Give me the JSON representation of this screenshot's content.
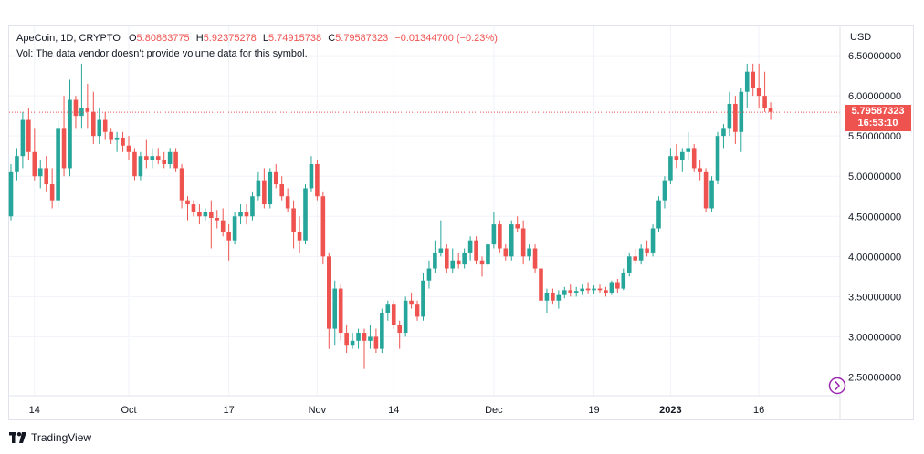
{
  "legend": {
    "symbol": "ApeCoin, 1D, CRYPTO",
    "open_label": "O",
    "open": "5.80883775",
    "high_label": "H",
    "high": "5.92375278",
    "low_label": "L",
    "low": "5.74915738",
    "close_label": "C",
    "close": "5.79587323",
    "change": "−0.01344700 (−0.23%)",
    "volume_note": "Vol: The data vendor doesn't provide volume data for this symbol."
  },
  "price_axis": {
    "currency": "USD",
    "tick_labels": [
      "6.50000000",
      "6.00000000",
      "5.50000000",
      "5.00000000",
      "4.50000000",
      "4.00000000",
      "3.50000000",
      "3.00000000",
      "2.50000000"
    ]
  },
  "current_price": {
    "value": "5.79587323",
    "countdown": "16:53:10"
  },
  "time_axis": {
    "tick_labels": [
      "14",
      "Oct",
      "17",
      "Nov",
      "14",
      "Dec",
      "19",
      "2023",
      "16"
    ]
  },
  "footer": {
    "brand": "TradingView"
  },
  "colors": {
    "up": "#26a69a",
    "down": "#ef5350",
    "grid": "#f0f3fa",
    "text": "#131722"
  },
  "icons": {
    "go_to_latest": "go-to-latest-icon",
    "logo": "tradingview-logo-icon"
  },
  "chart_data": {
    "type": "candlestick",
    "title": "ApeCoin, 1D, CRYPTO",
    "ylim": [
      2.25,
      6.75
    ],
    "y_ticks": [
      6.5,
      6.0,
      5.5,
      5.0,
      4.5,
      4.0,
      3.5,
      3.0,
      2.5
    ],
    "x_ticks": [
      {
        "label": "14",
        "index": 4
      },
      {
        "label": "Oct",
        "index": 20
      },
      {
        "label": "17",
        "index": 37
      },
      {
        "label": "Nov",
        "index": 52
      },
      {
        "label": "14",
        "index": 65
      },
      {
        "label": "Dec",
        "index": 82
      },
      {
        "label": "19",
        "index": 99
      },
      {
        "label": "2023",
        "index": 112
      },
      {
        "label": "16",
        "index": 127
      }
    ],
    "last_close": 5.79587323,
    "candles": [
      [
        4.5,
        5.15,
        4.45,
        5.05
      ],
      [
        5.05,
        5.35,
        4.95,
        5.25
      ],
      [
        5.25,
        5.8,
        5.1,
        5.7
      ],
      [
        5.7,
        5.85,
        5.2,
        5.3
      ],
      [
        5.3,
        5.6,
        4.95,
        5.0
      ],
      [
        5.0,
        5.2,
        4.85,
        5.1
      ],
      [
        5.1,
        5.25,
        4.8,
        4.9
      ],
      [
        4.9,
        5.1,
        4.6,
        4.7
      ],
      [
        4.7,
        5.7,
        4.6,
        5.6
      ],
      [
        5.6,
        6.0,
        5.0,
        5.1
      ],
      [
        5.1,
        6.2,
        5.0,
        5.95
      ],
      [
        5.95,
        6.0,
        5.6,
        5.75
      ],
      [
        5.75,
        6.4,
        5.6,
        5.85
      ],
      [
        5.85,
        6.15,
        5.6,
        5.8
      ],
      [
        5.8,
        6.05,
        5.4,
        5.5
      ],
      [
        5.5,
        5.85,
        5.4,
        5.7
      ],
      [
        5.7,
        5.8,
        5.45,
        5.55
      ],
      [
        5.55,
        5.6,
        5.4,
        5.45
      ],
      [
        5.45,
        5.55,
        5.3,
        5.48
      ],
      [
        5.48,
        5.55,
        5.3,
        5.38
      ],
      [
        5.38,
        5.5,
        5.2,
        5.3
      ],
      [
        5.3,
        5.35,
        4.95,
        5.0
      ],
      [
        5.0,
        5.3,
        4.95,
        5.25
      ],
      [
        5.25,
        5.45,
        5.1,
        5.2
      ],
      [
        5.2,
        5.35,
        5.1,
        5.25
      ],
      [
        5.25,
        5.35,
        5.15,
        5.2
      ],
      [
        5.2,
        5.3,
        5.1,
        5.15
      ],
      [
        5.15,
        5.35,
        5.1,
        5.3
      ],
      [
        5.3,
        5.35,
        5.05,
        5.1
      ],
      [
        5.1,
        5.15,
        4.6,
        4.7
      ],
      [
        4.7,
        4.75,
        4.45,
        4.65
      ],
      [
        4.65,
        4.7,
        4.5,
        4.55
      ],
      [
        4.55,
        4.65,
        4.4,
        4.5
      ],
      [
        4.5,
        4.6,
        4.45,
        4.55
      ],
      [
        4.55,
        4.7,
        4.1,
        4.48
      ],
      [
        4.48,
        4.58,
        4.35,
        4.45
      ],
      [
        4.45,
        4.6,
        4.25,
        4.3
      ],
      [
        4.3,
        4.4,
        3.95,
        4.2
      ],
      [
        4.2,
        4.55,
        4.15,
        4.5
      ],
      [
        4.5,
        4.65,
        4.4,
        4.55
      ],
      [
        4.55,
        4.65,
        4.4,
        4.5
      ],
      [
        4.5,
        4.8,
        4.45,
        4.75
      ],
      [
        4.75,
        5.05,
        4.7,
        4.95
      ],
      [
        4.95,
        5.1,
        4.6,
        4.65
      ],
      [
        4.65,
        5.1,
        4.6,
        5.05
      ],
      [
        5.05,
        5.15,
        4.85,
        4.9
      ],
      [
        4.9,
        5.0,
        4.7,
        4.75
      ],
      [
        4.75,
        4.85,
        4.55,
        4.6
      ],
      [
        4.6,
        4.7,
        4.1,
        4.3
      ],
      [
        4.3,
        4.5,
        4.05,
        4.2
      ],
      [
        4.2,
        4.9,
        4.15,
        4.85
      ],
      [
        4.85,
        5.25,
        4.8,
        5.15
      ],
      [
        5.15,
        5.2,
        4.7,
        4.75
      ],
      [
        4.75,
        4.8,
        3.9,
        4.0
      ],
      [
        4.0,
        4.05,
        2.85,
        3.1
      ],
      [
        3.1,
        3.7,
        2.9,
        3.6
      ],
      [
        3.6,
        3.65,
        2.95,
        3.05
      ],
      [
        3.05,
        3.15,
        2.8,
        2.9
      ],
      [
        2.9,
        3.05,
        2.85,
        2.95
      ],
      [
        2.95,
        3.1,
        2.85,
        3.05
      ],
      [
        3.05,
        3.1,
        2.6,
        2.95
      ],
      [
        2.95,
        3.15,
        2.85,
        3.0
      ],
      [
        3.0,
        3.1,
        2.8,
        2.85
      ],
      [
        2.85,
        3.35,
        2.8,
        3.3
      ],
      [
        3.3,
        3.45,
        3.2,
        3.4
      ],
      [
        3.4,
        3.45,
        3.1,
        3.15
      ],
      [
        3.15,
        3.2,
        2.85,
        3.05
      ],
      [
        3.05,
        3.5,
        3.0,
        3.45
      ],
      [
        3.45,
        3.55,
        3.35,
        3.4
      ],
      [
        3.4,
        3.45,
        3.2,
        3.25
      ],
      [
        3.25,
        3.8,
        3.2,
        3.7
      ],
      [
        3.7,
        3.95,
        3.6,
        3.85
      ],
      [
        3.85,
        4.2,
        3.8,
        4.05
      ],
      [
        4.05,
        4.45,
        4.0,
        4.1
      ],
      [
        4.1,
        4.15,
        3.8,
        3.85
      ],
      [
        3.85,
        4.1,
        3.8,
        3.95
      ],
      [
        3.95,
        4.05,
        3.85,
        3.9
      ],
      [
        3.9,
        4.1,
        3.85,
        4.05
      ],
      [
        4.05,
        4.25,
        3.95,
        4.2
      ],
      [
        4.2,
        4.25,
        3.9,
        3.95
      ],
      [
        3.95,
        4.0,
        3.75,
        3.9
      ],
      [
        3.9,
        4.2,
        3.85,
        4.15
      ],
      [
        4.15,
        4.55,
        4.1,
        4.4
      ],
      [
        4.4,
        4.45,
        4.05,
        4.1
      ],
      [
        4.1,
        4.15,
        3.95,
        4.0
      ],
      [
        4.0,
        4.45,
        3.95,
        4.4
      ],
      [
        4.4,
        4.5,
        4.3,
        4.35
      ],
      [
        4.35,
        4.45,
        3.9,
        4.0
      ],
      [
        4.0,
        4.15,
        3.95,
        4.1
      ],
      [
        4.1,
        4.15,
        3.8,
        3.85
      ],
      [
        3.85,
        3.9,
        3.3,
        3.45
      ],
      [
        3.45,
        3.6,
        3.3,
        3.55
      ],
      [
        3.55,
        3.6,
        3.4,
        3.45
      ],
      [
        3.45,
        3.58,
        3.35,
        3.52
      ],
      [
        3.52,
        3.62,
        3.48,
        3.58
      ],
      [
        3.58,
        3.65,
        3.5,
        3.55
      ],
      [
        3.55,
        3.62,
        3.5,
        3.57
      ],
      [
        3.57,
        3.65,
        3.52,
        3.6
      ],
      [
        3.6,
        3.68,
        3.54,
        3.58
      ],
      [
        3.58,
        3.64,
        3.54,
        3.6
      ],
      [
        3.6,
        3.65,
        3.55,
        3.58
      ],
      [
        3.58,
        3.62,
        3.5,
        3.55
      ],
      [
        3.55,
        3.7,
        3.52,
        3.68
      ],
      [
        3.68,
        3.72,
        3.55,
        3.6
      ],
      [
        3.6,
        3.85,
        3.58,
        3.8
      ],
      [
        3.8,
        4.05,
        3.75,
        4.0
      ],
      [
        4.0,
        4.1,
        3.9,
        3.95
      ],
      [
        3.95,
        4.15,
        3.9,
        4.1
      ],
      [
        4.1,
        4.2,
        4.0,
        4.05
      ],
      [
        4.05,
        4.4,
        4.0,
        4.35
      ],
      [
        4.35,
        4.75,
        4.3,
        4.7
      ],
      [
        4.7,
        5.0,
        4.6,
        4.95
      ],
      [
        4.95,
        5.35,
        4.9,
        5.25
      ],
      [
        5.25,
        5.4,
        5.1,
        5.2
      ],
      [
        5.2,
        5.35,
        5.05,
        5.3
      ],
      [
        5.3,
        5.55,
        5.2,
        5.35
      ],
      [
        5.35,
        5.4,
        5.05,
        5.1
      ],
      [
        5.1,
        5.2,
        4.95,
        5.05
      ],
      [
        5.05,
        5.1,
        4.55,
        4.6
      ],
      [
        4.6,
        5.0,
        4.55,
        4.95
      ],
      [
        4.95,
        5.55,
        4.9,
        5.5
      ],
      [
        5.5,
        5.65,
        5.35,
        5.6
      ],
      [
        5.6,
        6.05,
        5.5,
        5.9
      ],
      [
        5.9,
        6.0,
        5.4,
        5.55
      ],
      [
        5.55,
        6.1,
        5.3,
        6.05
      ],
      [
        6.05,
        6.4,
        5.85,
        6.3
      ],
      [
        6.3,
        6.4,
        6.0,
        6.1
      ],
      [
        6.1,
        6.4,
        5.85,
        6.0
      ],
      [
        6.0,
        6.3,
        5.8,
        5.85
      ],
      [
        5.85,
        5.92,
        5.7,
        5.8
      ]
    ]
  }
}
